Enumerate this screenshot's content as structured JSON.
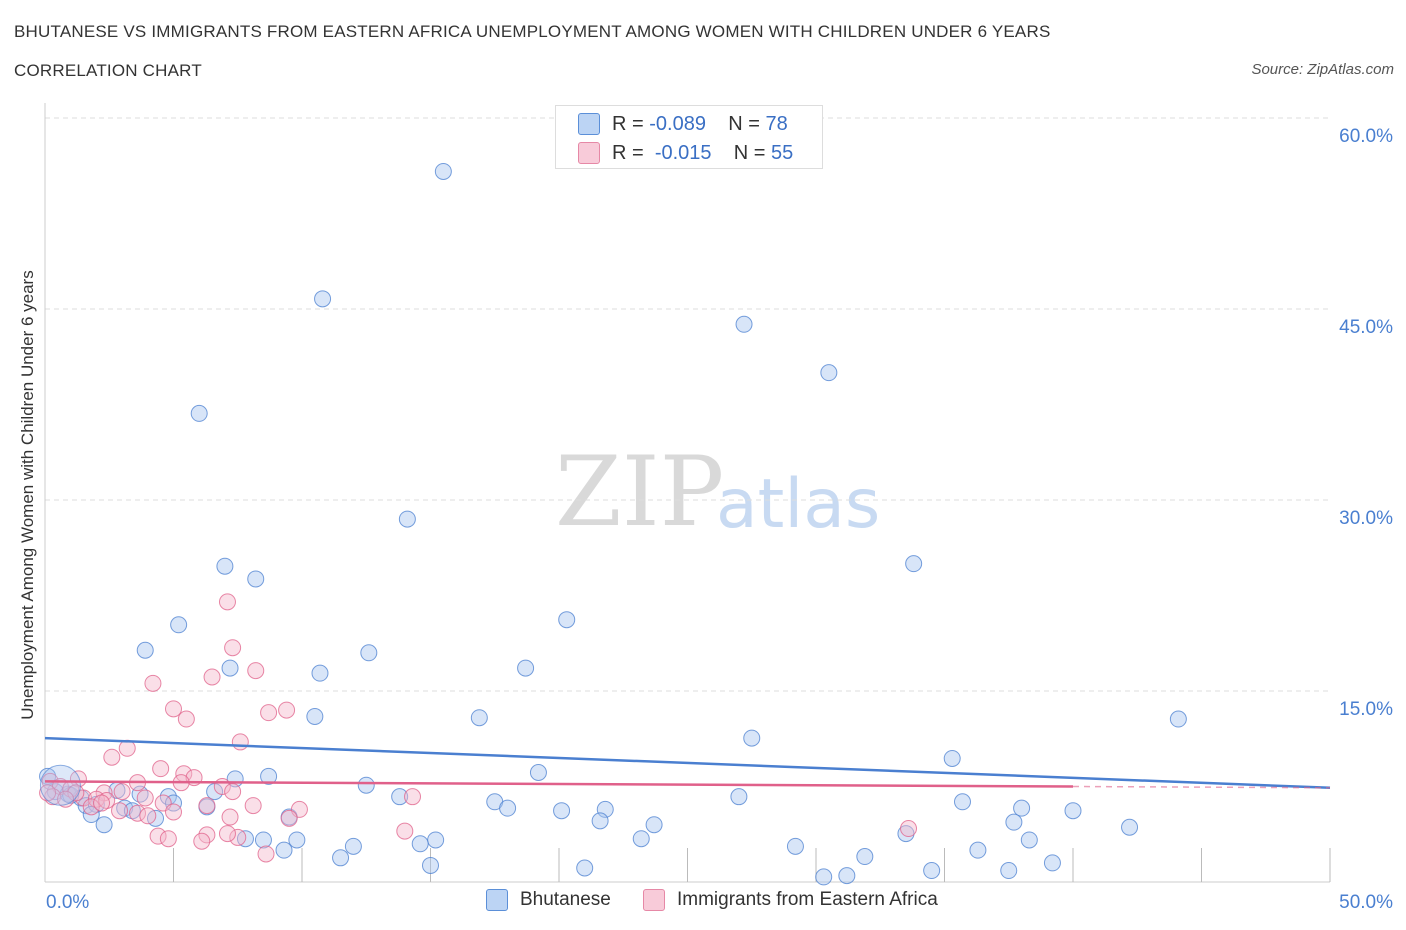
{
  "header": {
    "title": "BHUTANESE VS IMMIGRANTS FROM EASTERN AFRICA UNEMPLOYMENT AMONG WOMEN WITH CHILDREN UNDER 6 YEARS",
    "subtitle": "CORRELATION CHART",
    "source": "Source: ZipAtlas.com"
  },
  "watermark": {
    "zip": "ZIP",
    "atlas": "atlas"
  },
  "legend_top": {
    "rows": [
      {
        "r_label": "R =",
        "r_value": "-0.089",
        "n_label": "N =",
        "n_value": "78",
        "color": "#a9c6ef"
      },
      {
        "r_label": "R =",
        "r_value": "-0.015",
        "n_label": "N =",
        "n_value": "55",
        "color": "#f5b8cb"
      }
    ]
  },
  "chart_data": {
    "type": "scatter",
    "title": "BHUTANESE VS IMMIGRANTS FROM EASTERN AFRICA UNEMPLOYMENT AMONG WOMEN WITH CHILDREN UNDER 6 YEARS",
    "subtitle": "CORRELATION CHART",
    "ylabel": "Unemployment Among Women with Children Under 6 years",
    "xlim": [
      0,
      50
    ],
    "ylim": [
      0,
      60
    ],
    "x_tick_labels": [
      "0.0%",
      "50.0%"
    ],
    "y_tick_labels": [
      "15.0%",
      "30.0%",
      "45.0%",
      "60.0%"
    ],
    "y_tick_values": [
      15,
      30,
      45,
      60
    ],
    "grid": "horizontal dashed",
    "legend_position": "bottom",
    "series": [
      {
        "name": "Bhutanese",
        "color": "#4a7fd0",
        "fill": "#a9c6ef",
        "trend": {
          "x": [
            0,
            50
          ],
          "y": [
            11.3,
            7.4
          ]
        },
        "points": [
          [
            15.5,
            55.8
          ],
          [
            10.8,
            45.8
          ],
          [
            27.2,
            43.8
          ],
          [
            30.5,
            40.0
          ],
          [
            6.0,
            36.8
          ],
          [
            14.1,
            28.5
          ],
          [
            33.8,
            25.0
          ],
          [
            7.0,
            24.8
          ],
          [
            8.2,
            23.8
          ],
          [
            20.3,
            20.6
          ],
          [
            5.2,
            20.2
          ],
          [
            3.9,
            18.2
          ],
          [
            12.6,
            18.0
          ],
          [
            7.2,
            16.8
          ],
          [
            10.7,
            16.4
          ],
          [
            18.7,
            16.8
          ],
          [
            10.5,
            13.0
          ],
          [
            16.9,
            12.9
          ],
          [
            44.1,
            12.8
          ],
          [
            27.5,
            11.3
          ],
          [
            35.3,
            9.7
          ],
          [
            19.2,
            8.6
          ],
          [
            8.7,
            8.3
          ],
          [
            7.4,
            8.1
          ],
          [
            12.5,
            7.6
          ],
          [
            0.1,
            8.3
          ],
          [
            0.4,
            7.1
          ],
          [
            0.9,
            6.9
          ],
          [
            1.4,
            6.6
          ],
          [
            2.8,
            7.2
          ],
          [
            6.6,
            7.1
          ],
          [
            3.7,
            6.9
          ],
          [
            4.8,
            6.7
          ],
          [
            5.0,
            6.2
          ],
          [
            1.6,
            6.0
          ],
          [
            3.1,
            5.8
          ],
          [
            2.0,
            6.1
          ],
          [
            1.8,
            5.3
          ],
          [
            3.4,
            5.6
          ],
          [
            4.3,
            5.0
          ],
          [
            6.3,
            5.9
          ],
          [
            2.3,
            4.5
          ],
          [
            13.8,
            6.7
          ],
          [
            17.5,
            6.3
          ],
          [
            18.0,
            5.8
          ],
          [
            20.1,
            5.6
          ],
          [
            21.8,
            5.7
          ],
          [
            27.0,
            6.7
          ],
          [
            35.7,
            6.3
          ],
          [
            38.0,
            5.8
          ],
          [
            40.0,
            5.6
          ],
          [
            9.5,
            5.1
          ],
          [
            15.2,
            3.3
          ],
          [
            14.6,
            3.0
          ],
          [
            21.6,
            4.8
          ],
          [
            23.7,
            4.5
          ],
          [
            23.2,
            3.4
          ],
          [
            29.2,
            2.8
          ],
          [
            33.5,
            3.8
          ],
          [
            37.7,
            4.7
          ],
          [
            38.3,
            3.3
          ],
          [
            42.2,
            4.3
          ],
          [
            7.8,
            3.4
          ],
          [
            8.5,
            3.3
          ],
          [
            9.8,
            3.3
          ],
          [
            9.3,
            2.5
          ],
          [
            12.0,
            2.8
          ],
          [
            11.5,
            1.9
          ],
          [
            15.0,
            1.3
          ],
          [
            21.0,
            1.1
          ],
          [
            31.9,
            2.0
          ],
          [
            34.5,
            0.9
          ],
          [
            36.3,
            2.5
          ],
          [
            37.5,
            0.9
          ],
          [
            39.2,
            1.5
          ],
          [
            31.2,
            0.5
          ],
          [
            30.3,
            0.4
          ],
          [
            1.0,
            6.8
          ]
        ]
      },
      {
        "name": "Immigrants from Eastern Africa",
        "color": "#e0608a",
        "fill": "#f5b8cb",
        "trend": {
          "x": [
            0,
            40
          ],
          "y": [
            7.9,
            7.5
          ]
        },
        "trend_dashed": {
          "x": [
            40,
            50
          ],
          "y": [
            7.5,
            7.4
          ]
        },
        "points": [
          [
            7.1,
            22.0
          ],
          [
            7.3,
            18.4
          ],
          [
            8.2,
            16.6
          ],
          [
            6.5,
            16.1
          ],
          [
            4.2,
            15.6
          ],
          [
            5.0,
            13.6
          ],
          [
            8.7,
            13.3
          ],
          [
            9.4,
            13.5
          ],
          [
            5.5,
            12.8
          ],
          [
            7.6,
            11.0
          ],
          [
            3.2,
            10.5
          ],
          [
            2.6,
            9.8
          ],
          [
            4.5,
            8.9
          ],
          [
            5.4,
            8.5
          ],
          [
            5.8,
            8.2
          ],
          [
            1.3,
            8.1
          ],
          [
            0.2,
            7.9
          ],
          [
            0.6,
            7.5
          ],
          [
            1.0,
            7.3
          ],
          [
            2.3,
            7.0
          ],
          [
            3.0,
            7.1
          ],
          [
            3.6,
            7.8
          ],
          [
            6.9,
            7.5
          ],
          [
            7.3,
            7.1
          ],
          [
            1.5,
            6.6
          ],
          [
            0.3,
            6.7
          ],
          [
            2.0,
            6.5
          ],
          [
            2.4,
            6.4
          ],
          [
            3.9,
            6.6
          ],
          [
            4.6,
            6.2
          ],
          [
            1.8,
            5.9
          ],
          [
            2.9,
            5.6
          ],
          [
            3.6,
            5.4
          ],
          [
            6.3,
            6.0
          ],
          [
            8.1,
            6.0
          ],
          [
            9.9,
            5.7
          ],
          [
            4.0,
            5.2
          ],
          [
            5.0,
            5.5
          ],
          [
            7.2,
            5.1
          ],
          [
            9.5,
            5.0
          ],
          [
            4.4,
            3.6
          ],
          [
            4.8,
            3.4
          ],
          [
            6.3,
            3.7
          ],
          [
            6.1,
            3.2
          ],
          [
            7.5,
            3.5
          ],
          [
            7.1,
            3.8
          ],
          [
            8.6,
            2.2
          ],
          [
            14.0,
            4.0
          ],
          [
            14.3,
            6.7
          ],
          [
            1.2,
            7.0
          ],
          [
            0.1,
            7.0
          ],
          [
            33.6,
            4.2
          ],
          [
            2.2,
            6.2
          ],
          [
            0.8,
            6.5
          ],
          [
            5.3,
            7.8
          ]
        ]
      }
    ]
  },
  "bottom_legend": [
    {
      "label": "Bhutanese",
      "color": "#a9c6ef"
    },
    {
      "label": "Immigrants from Eastern Africa",
      "color": "#f5b8cb"
    }
  ]
}
